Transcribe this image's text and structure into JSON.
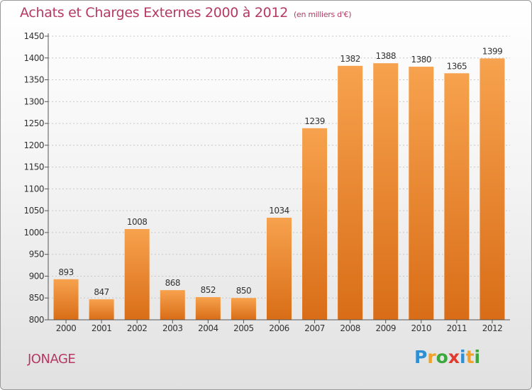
{
  "header": {
    "title": "Achats et Charges Externes 2000 à 2012",
    "subtitle": "(en milliers d'€)"
  },
  "footer": {
    "city": "JONAGE",
    "brand": {
      "letters": [
        "P",
        "r",
        "o",
        "x",
        "i",
        "t",
        "i"
      ],
      "colors": [
        "#2f8fd4",
        "#f0a12a",
        "#3aa83a",
        "#e23a2e",
        "#2f8fd4",
        "#f0a12a",
        "#3aa83a"
      ]
    }
  },
  "colors": {
    "title": "#b43a63",
    "bar_light": "#f7a24e",
    "bar_dark": "#d96d17",
    "axis": "#555555",
    "grid": "#c8c8c8"
  },
  "chart_data": {
    "type": "bar",
    "categories": [
      "2000",
      "2001",
      "2002",
      "2003",
      "2004",
      "2005",
      "2006",
      "2007",
      "2008",
      "2009",
      "2010",
      "2011",
      "2012"
    ],
    "values": [
      893,
      847,
      1008,
      868,
      852,
      850,
      1034,
      1239,
      1382,
      1388,
      1380,
      1365,
      1399
    ],
    "ylim": [
      800,
      1450
    ],
    "yticks": [
      800,
      850,
      900,
      950,
      1000,
      1050,
      1100,
      1150,
      1200,
      1250,
      1300,
      1350,
      1400,
      1450
    ],
    "grid": true,
    "data_labels": true
  }
}
